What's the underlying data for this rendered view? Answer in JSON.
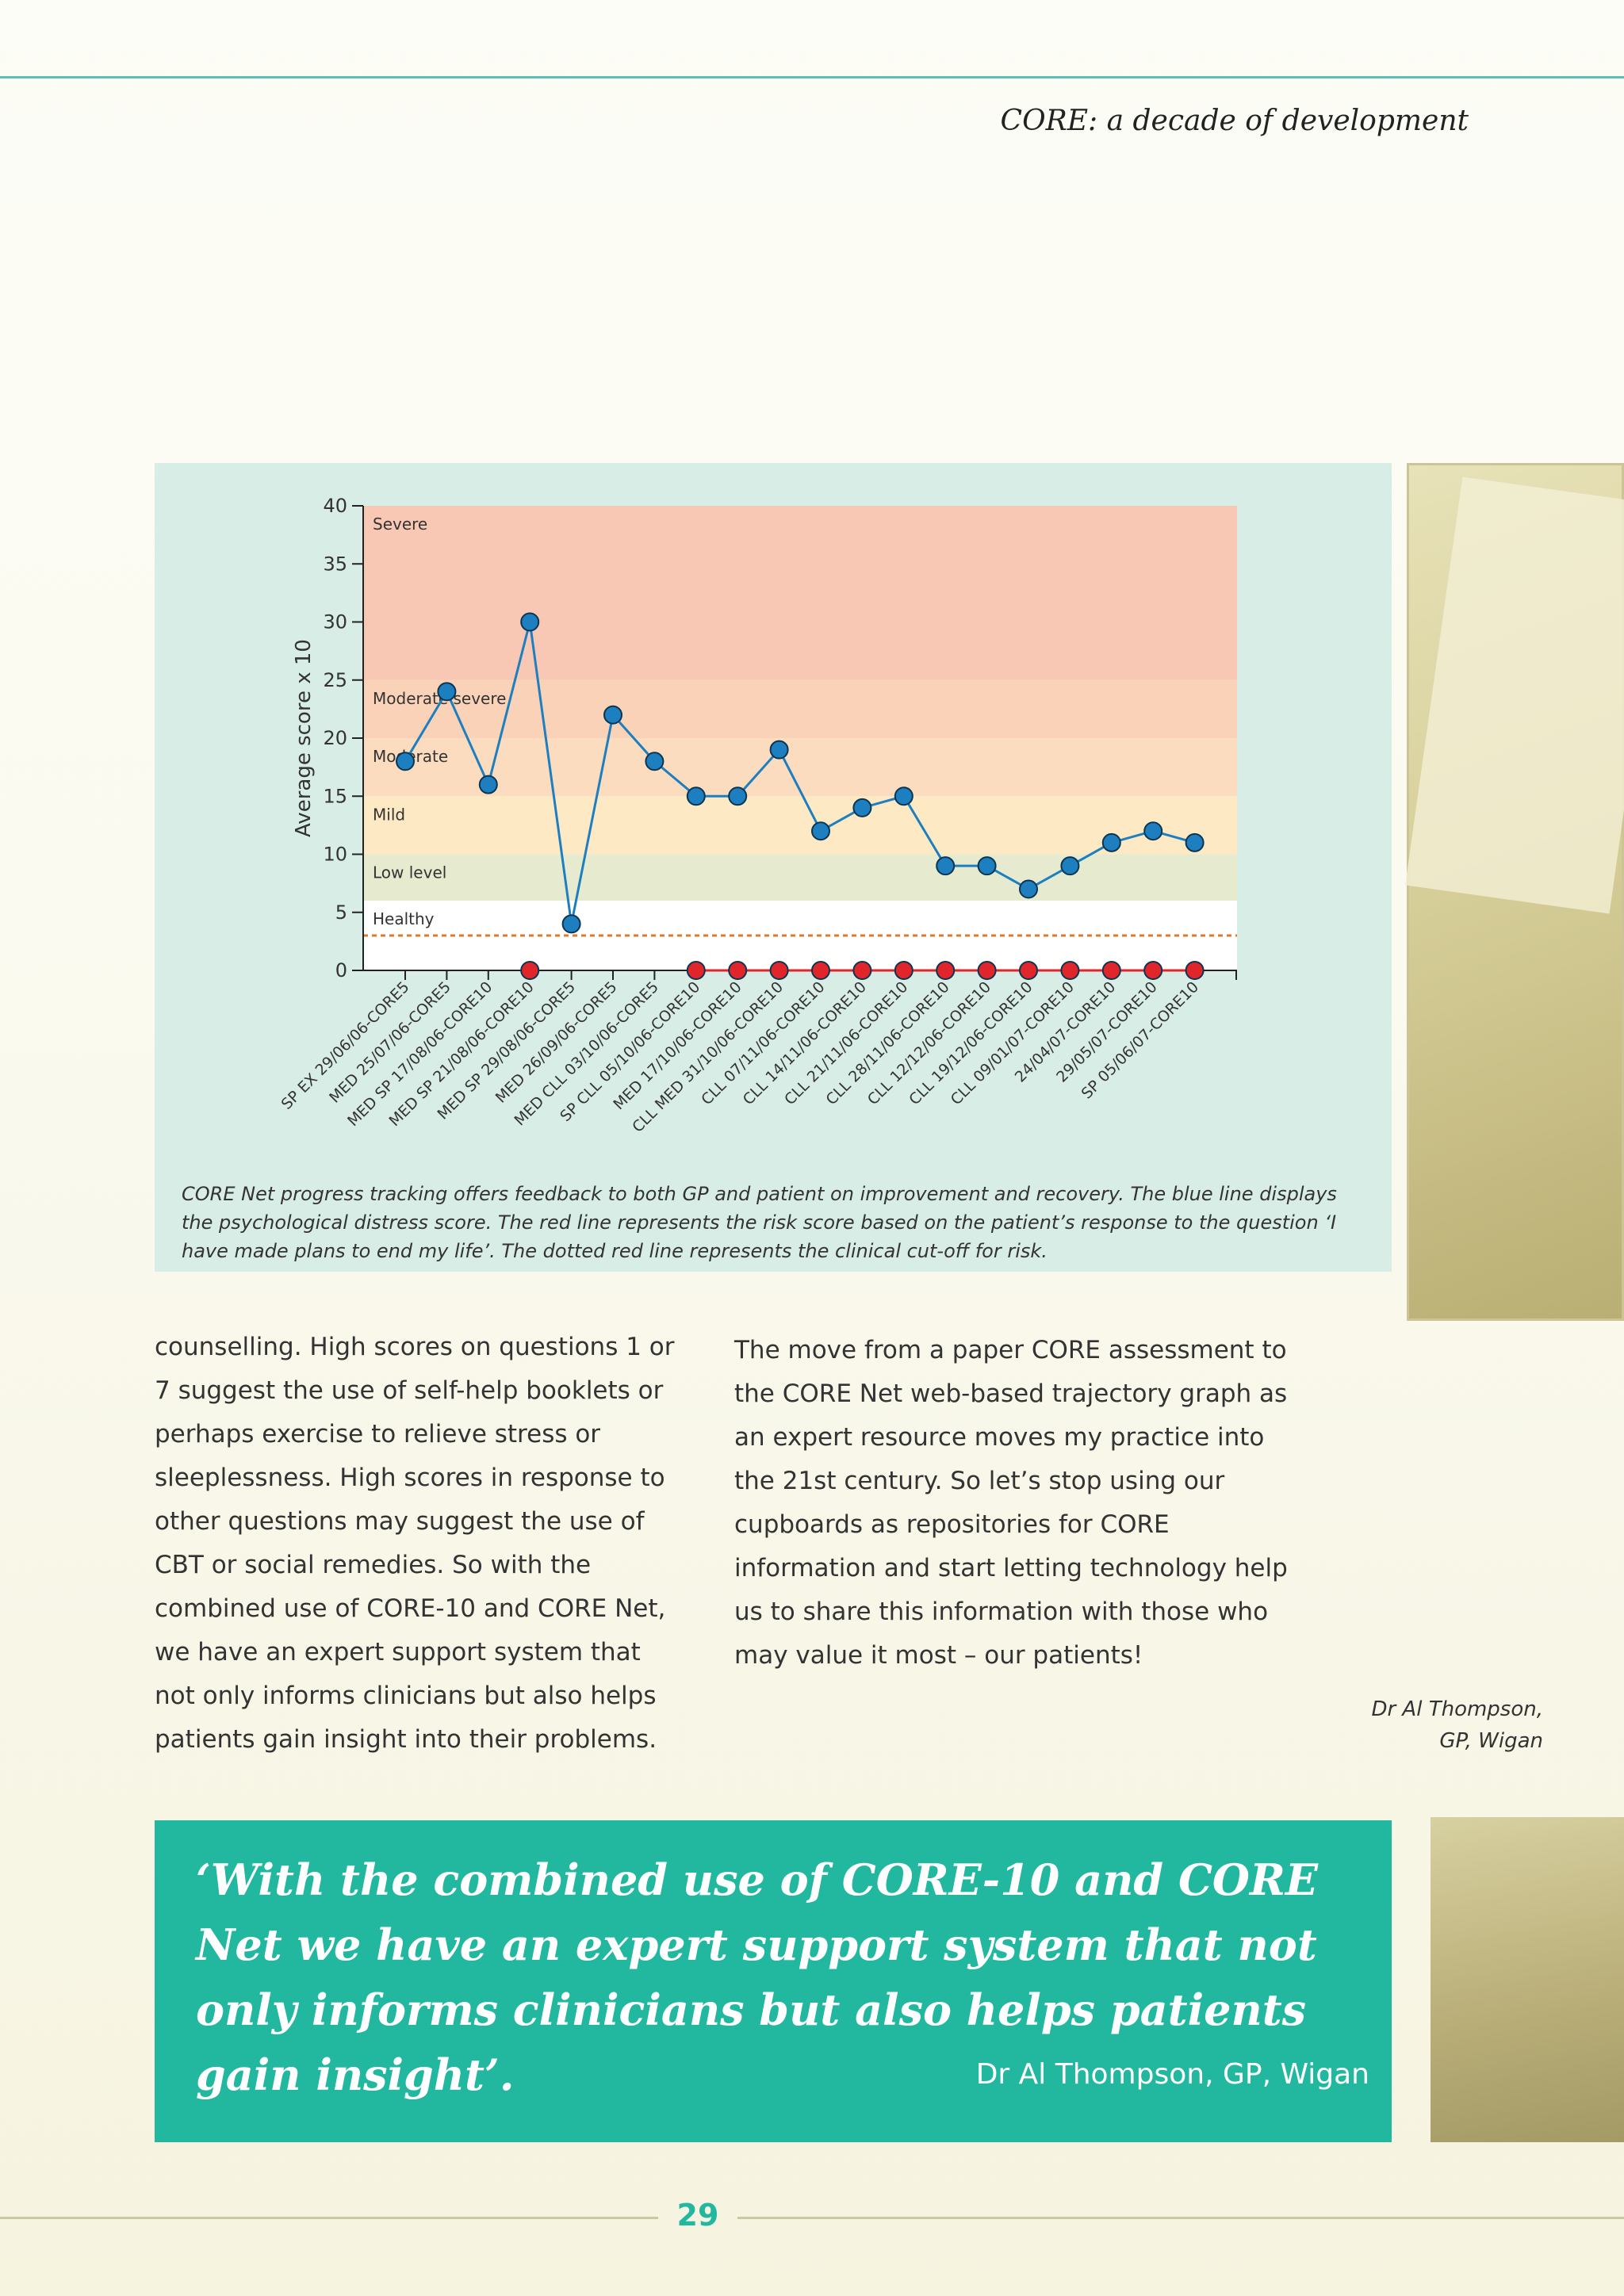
{
  "header": {
    "running_title": "CORE: a decade of development"
  },
  "chart_data": {
    "type": "line",
    "ylabel": "Average score x 10",
    "ylim": [
      0,
      40
    ],
    "yticks": [
      0,
      5,
      10,
      15,
      20,
      25,
      30,
      35,
      40
    ],
    "bands": [
      {
        "label": "Severe",
        "from": 25,
        "to": 40,
        "color": "#f9c8b4"
      },
      {
        "label": "Moderate severe",
        "from": 20,
        "to": 25,
        "color": "#f9d2b8"
      },
      {
        "label": "Moderate",
        "from": 15,
        "to": 20,
        "color": "#fbdcbe"
      },
      {
        "label": "Mild",
        "from": 10,
        "to": 15,
        "color": "#fdeac4"
      },
      {
        "label": "Low level",
        "from": 6,
        "to": 10,
        "color": "#e6ebcf"
      },
      {
        "label": "Healthy",
        "from": 0,
        "to": 6,
        "color": "#ffffff"
      }
    ],
    "cutoff": 3,
    "categories": [
      "SP EX 29/06/06-CORE5",
      "MED 25/07/06-CORE5",
      "MED SP 17/08/06-CORE10",
      "MED SP 21/08/06-CORE10",
      "MED SP 29/08/06-CORE5",
      "MED 26/09/06-CORE5",
      "MED CLL 03/10/06-CORE5",
      "SP CLL 05/10/06-CORE10",
      "MED 17/10/06-CORE10",
      "CLL MED 31/10/06-CORE10",
      "CLL 07/11/06-CORE10",
      "CLL 14/11/06-CORE10",
      "CLL 21/11/06-CORE10",
      "CLL 28/11/06-CORE10",
      "CLL 12/12/06-CORE10",
      "CLL 19/12/06-CORE10",
      "CLL 09/01/07-CORE10",
      "24/04/07-CORE10",
      "29/05/07-CORE10",
      "SP 05/06/07-CORE10"
    ],
    "series": [
      {
        "color": "#1e7fc0",
        "values": [
          18,
          24,
          16,
          30,
          4,
          22,
          18,
          15,
          15,
          19,
          12,
          14,
          15,
          9,
          9,
          7,
          9,
          11,
          12,
          11
        ]
      },
      {
        "color": "#e0262b",
        "values": [
          null,
          null,
          null,
          0,
          null,
          null,
          null,
          0,
          0,
          0,
          0,
          0,
          0,
          0,
          0,
          0,
          0,
          0,
          0,
          0
        ]
      }
    ]
  },
  "caption": "CORE Net progress tracking offers feedback to both GP and patient on improvement and recovery. The blue line displays the psychological distress score. The red line represents the risk score based on the patient’s response to the question ‘I have made plans to end my life’. The dotted red line represents the clinical cut-off for risk.",
  "body": {
    "left_column": "counselling. High scores on questions 1 or 7 suggest the use of self-help booklets or perhaps exercise to relieve stress or sleeplessness. High scores in response to other questions may suggest the use of CBT or social remedies. So with the combined use of CORE-10 and CORE Net, we have an expert support system that not only informs clinicians but also helps patients gain insight into their problems.",
    "right_column": "The move from a paper CORE assessment to the CORE Net web-based trajectory graph as an expert resource moves my practice into the 21st century. So let’s stop using our cupboards as repositories for CORE information and start letting technology help us to share this information with those who may value it most – our patients!"
  },
  "signature": {
    "line1": "Dr Al Thompson,",
    "line2": "GP, Wigan"
  },
  "pull_quote": {
    "text": "‘With the combined use of CORE-10 and CORE Net we have an expert support system that not only informs clinicians but also helps patients gain insight’.",
    "attribution": "Dr Al Thompson, GP, Wigan"
  },
  "footer": {
    "page_number": "29"
  }
}
